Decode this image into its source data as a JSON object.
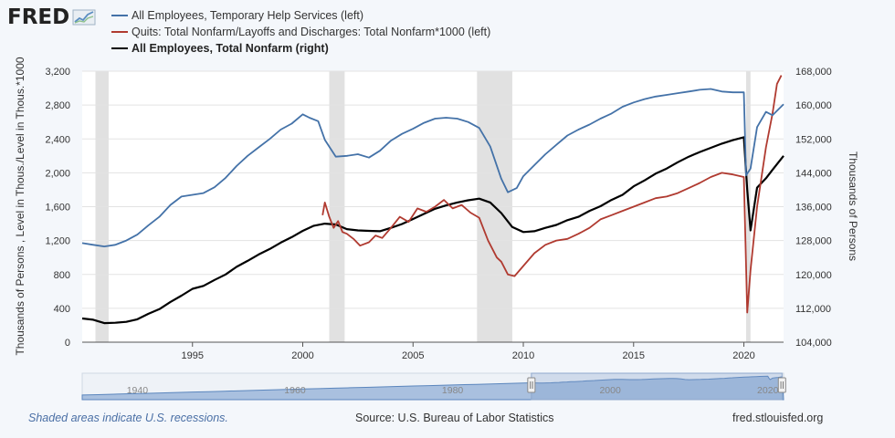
{
  "header": {
    "logo_text": "FRED",
    "logo_icon": "trend-line-chart-icon"
  },
  "legend": [
    {
      "label": "All Employees, Temporary Help Services (left)",
      "color": "#4472a8"
    },
    {
      "label": "Quits: Total Nonfarm/Layoffs and Discharges: Total Nonfarm*1000 (left)",
      "color": "#b03a30"
    },
    {
      "label": "All Employees, Total Nonfarm (right)",
      "color": "#000000"
    }
  ],
  "chart_data": {
    "type": "line",
    "x_range": [
      1990.0,
      2021.8
    ],
    "x_ticks": [
      "1995",
      "2000",
      "2005",
      "2010",
      "2015",
      "2020"
    ],
    "x_tick_values": [
      1995,
      2000,
      2005,
      2010,
      2015,
      2020
    ],
    "left_axis": {
      "label": "Thousands of Persons , Level in Thous./Level in Thous.*1000",
      "range": [
        0,
        3200
      ],
      "ticks": [
        "0",
        "400",
        "800",
        "1,200",
        "1,600",
        "2,000",
        "2,400",
        "2,800",
        "3,200"
      ]
    },
    "right_axis": {
      "label": "Thousands of Persons",
      "range": [
        104000,
        168000
      ],
      "ticks": [
        "104,000",
        "112,000",
        "120,000",
        "128,000",
        "136,000",
        "144,000",
        "152,000",
        "160,000",
        "168,000"
      ]
    },
    "recessions": [
      [
        1990.6,
        1991.2
      ],
      [
        2001.2,
        2001.9
      ],
      [
        2007.9,
        2009.5
      ],
      [
        2020.1,
        2020.3
      ]
    ],
    "series": [
      {
        "name": "All Employees, Temporary Help Services (left)",
        "axis": "left",
        "color": "#4472a8",
        "x": [
          1990.0,
          1990.5,
          1991.0,
          1991.5,
          1992.0,
          1992.5,
          1993.0,
          1993.5,
          1994.0,
          1994.5,
          1995.0,
          1995.5,
          1996.0,
          1996.5,
          1997.0,
          1997.5,
          1998.0,
          1998.5,
          1999.0,
          1999.5,
          2000.0,
          2000.3,
          2000.7,
          2001.0,
          2001.5,
          2002.0,
          2002.5,
          2003.0,
          2003.5,
          2004.0,
          2004.5,
          2005.0,
          2005.5,
          2006.0,
          2006.5,
          2007.0,
          2007.5,
          2008.0,
          2008.5,
          2009.0,
          2009.3,
          2009.7,
          2010.0,
          2010.5,
          2011.0,
          2011.5,
          2012.0,
          2012.5,
          2013.0,
          2013.5,
          2014.0,
          2014.5,
          2015.0,
          2015.5,
          2016.0,
          2016.5,
          2017.0,
          2017.5,
          2018.0,
          2018.5,
          2019.0,
          2019.5,
          2020.0,
          2020.1,
          2020.3,
          2020.6,
          2021.0,
          2021.3,
          2021.8
        ],
        "values": [
          1170,
          1150,
          1130,
          1150,
          1200,
          1270,
          1380,
          1480,
          1620,
          1720,
          1740,
          1760,
          1830,
          1940,
          2080,
          2200,
          2300,
          2400,
          2510,
          2580,
          2690,
          2650,
          2610,
          2390,
          2190,
          2200,
          2220,
          2180,
          2260,
          2380,
          2460,
          2520,
          2590,
          2640,
          2650,
          2640,
          2600,
          2530,
          2310,
          1930,
          1770,
          1820,
          1960,
          2090,
          2220,
          2330,
          2440,
          2510,
          2570,
          2640,
          2700,
          2780,
          2830,
          2870,
          2900,
          2920,
          2940,
          2960,
          2980,
          2990,
          2960,
          2950,
          2950,
          1970,
          2050,
          2540,
          2720,
          2680,
          2810
        ]
      },
      {
        "name": "Quits: Total Nonfarm/Layoffs and Discharges: Total Nonfarm*1000 (left)",
        "axis": "left",
        "color": "#b03a30",
        "x": [
          2000.9,
          2001.0,
          2001.2,
          2001.4,
          2001.6,
          2001.8,
          2002.0,
          2002.3,
          2002.6,
          2003.0,
          2003.3,
          2003.6,
          2004.0,
          2004.4,
          2004.8,
          2005.2,
          2005.6,
          2006.0,
          2006.4,
          2006.8,
          2007.2,
          2007.6,
          2008.0,
          2008.4,
          2008.8,
          2009.0,
          2009.3,
          2009.6,
          2010.0,
          2010.5,
          2011.0,
          2011.5,
          2012.0,
          2012.5,
          2013.0,
          2013.5,
          2014.0,
          2014.5,
          2015.0,
          2015.5,
          2016.0,
          2016.5,
          2017.0,
          2017.5,
          2018.0,
          2018.5,
          2019.0,
          2019.5,
          2020.0,
          2020.15,
          2020.3,
          2020.6,
          2021.0,
          2021.3,
          2021.5,
          2021.7
        ],
        "values": [
          1500,
          1650,
          1480,
          1350,
          1430,
          1300,
          1280,
          1220,
          1140,
          1180,
          1260,
          1230,
          1350,
          1480,
          1420,
          1580,
          1540,
          1600,
          1680,
          1580,
          1620,
          1530,
          1470,
          1200,
          1000,
          950,
          800,
          780,
          900,
          1050,
          1150,
          1200,
          1220,
          1280,
          1350,
          1450,
          1500,
          1550,
          1600,
          1650,
          1700,
          1720,
          1760,
          1820,
          1880,
          1950,
          2000,
          1980,
          1950,
          350,
          850,
          1600,
          2300,
          2700,
          3050,
          3150
        ]
      },
      {
        "name": "All Employees, Total Nonfarm (right)",
        "axis": "right",
        "color": "#000000",
        "x": [
          1990.0,
          1990.5,
          1991.0,
          1991.5,
          1992.0,
          1992.5,
          1993.0,
          1993.5,
          1994.0,
          1994.5,
          1995.0,
          1995.5,
          1996.0,
          1996.5,
          1997.0,
          1997.5,
          1998.0,
          1998.5,
          1999.0,
          1999.5,
          2000.0,
          2000.5,
          2001.0,
          2001.5,
          2002.0,
          2002.5,
          2003.0,
          2003.5,
          2004.0,
          2004.5,
          2005.0,
          2005.5,
          2006.0,
          2006.5,
          2007.0,
          2007.5,
          2008.0,
          2008.5,
          2009.0,
          2009.5,
          2010.0,
          2010.5,
          2011.0,
          2011.5,
          2012.0,
          2012.5,
          2013.0,
          2013.5,
          2014.0,
          2014.5,
          2015.0,
          2015.5,
          2016.0,
          2016.5,
          2017.0,
          2017.5,
          2018.0,
          2018.5,
          2019.0,
          2019.5,
          2020.0,
          2020.15,
          2020.3,
          2020.6,
          2021.0,
          2021.3,
          2021.8
        ],
        "values": [
          109600,
          109300,
          108500,
          108600,
          108800,
          109400,
          110700,
          111800,
          113500,
          115000,
          116600,
          117300,
          118700,
          120000,
          121800,
          123200,
          124700,
          126000,
          127500,
          128800,
          130300,
          131500,
          132000,
          131800,
          130700,
          130400,
          130300,
          130200,
          131000,
          131900,
          133100,
          134300,
          135500,
          136300,
          137000,
          137500,
          137900,
          137000,
          134500,
          131200,
          130000,
          130200,
          131000,
          131700,
          132800,
          133600,
          135000,
          136100,
          137600,
          138800,
          140800,
          142200,
          143800,
          145000,
          146500,
          147800,
          148900,
          149900,
          150900,
          151700,
          152400,
          140000,
          130400,
          140500,
          142700,
          144700,
          148000
        ]
      }
    ],
    "navigator": {
      "ticks": [
        "1940",
        "1960",
        "1980",
        "2000",
        "2020"
      ],
      "tick_values": [
        1940,
        1960,
        1980,
        2000,
        2020
      ],
      "range": [
        1933,
        2022
      ],
      "window": [
        1990.0,
        2021.8
      ]
    }
  },
  "footer": {
    "note": "Shaded areas indicate U.S. recessions.",
    "source": "Source: U.S. Bureau of Labor Statistics",
    "site": "fred.stlouisfed.org"
  }
}
